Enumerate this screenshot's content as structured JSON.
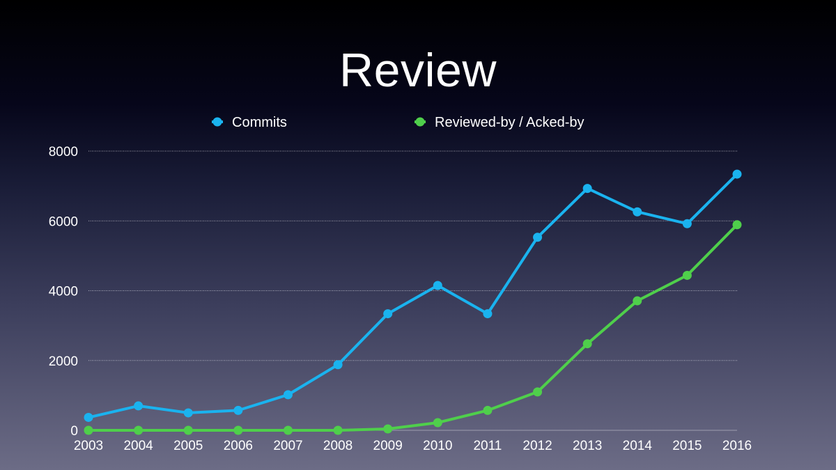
{
  "slide": {
    "title": "Review"
  },
  "colors": {
    "commits": "#1ab3ef",
    "reviewed": "#4fcf4b"
  },
  "chart_data": {
    "type": "line",
    "title": "Review",
    "xlabel": "",
    "ylabel": "",
    "categories": [
      "2003",
      "2004",
      "2005",
      "2006",
      "2007",
      "2008",
      "2009",
      "2010",
      "2011",
      "2012",
      "2013",
      "2014",
      "2015",
      "2016"
    ],
    "ylim": [
      0,
      8000
    ],
    "yticks": [
      0,
      2000,
      4000,
      6000,
      8000
    ],
    "grid": true,
    "legend_position": "top",
    "series": [
      {
        "name": "Commits",
        "color": "#1ab3ef",
        "values": [
          370,
          700,
          500,
          570,
          1020,
          1880,
          3340,
          4150,
          3340,
          5530,
          6930,
          6260,
          5920,
          7340
        ]
      },
      {
        "name": "Reviewed-by / Acked-by",
        "color": "#4fcf4b",
        "values": [
          0,
          0,
          0,
          0,
          0,
          0,
          40,
          220,
          570,
          1100,
          2480,
          3710,
          4440,
          5890
        ]
      }
    ]
  }
}
